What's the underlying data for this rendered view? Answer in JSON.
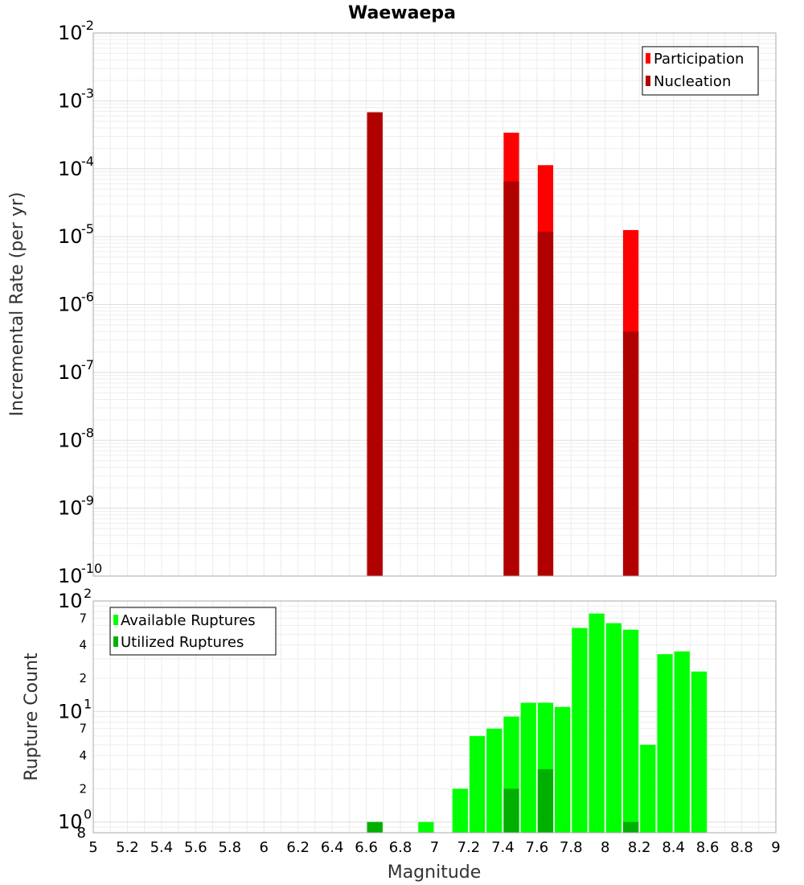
{
  "chart_data": [
    {
      "type": "bar",
      "title": "Waewaepa",
      "xlabel": "",
      "ylabel": "Incremental Rate (per yr)",
      "yscale": "log",
      "ylim": [
        1e-10,
        0.01
      ],
      "xlim": [
        5,
        9
      ],
      "bar_width": 0.1,
      "ytick_exponents": [
        "-10",
        "-9",
        "-8",
        "-7",
        "-6",
        "-5",
        "-4",
        "-3",
        "-2"
      ],
      "series": [
        {
          "name": "Participation",
          "color": "#ff0000",
          "x": [
            6.65,
            7.45,
            7.65,
            8.15
          ],
          "values": [
            0.00068,
            0.00034,
            0.000113,
            1.25e-05
          ]
        },
        {
          "name": "Nucleation",
          "color": "#b00000",
          "x": [
            6.65,
            7.45,
            7.65,
            8.15
          ],
          "values": [
            0.00068,
            6.5e-05,
            1.18e-05,
            4e-07
          ]
        }
      ],
      "legend": [
        "Participation",
        "Nucleation"
      ],
      "legend_position": "top-right"
    },
    {
      "type": "bar",
      "title": "",
      "xlabel": "Magnitude",
      "ylabel": "Rupture Count",
      "yscale": "log",
      "ylim": [
        0.8,
        100
      ],
      "xlim": [
        5,
        9
      ],
      "bar_width": 0.1,
      "xticks": [
        "5",
        "5.2",
        "5.4",
        "5.6",
        "5.8",
        "6",
        "6.2",
        "6.4",
        "6.6",
        "6.8",
        "7",
        "7.2",
        "7.4",
        "7.6",
        "7.8",
        "8",
        "8.2",
        "8.4",
        "8.6",
        "8.8",
        "9"
      ],
      "ytick_exponents": [
        "0",
        "1",
        "2"
      ],
      "y_minor_labels": [
        "2",
        "4",
        "7",
        "2",
        "4",
        "7"
      ],
      "y_low_label": "8",
      "series": [
        {
          "name": "Available Ruptures",
          "color": "#00ff00",
          "x": [
            6.65,
            6.95,
            7.15,
            7.25,
            7.35,
            7.45,
            7.55,
            7.65,
            7.75,
            7.85,
            7.95,
            8.05,
            8.15,
            8.25,
            8.35,
            8.45,
            8.55
          ],
          "values": [
            1,
            1,
            2,
            6,
            7,
            9,
            12,
            12,
            11,
            57,
            77,
            63,
            55,
            5,
            33,
            35,
            23
          ]
        },
        {
          "name": "Utilized Ruptures",
          "color": "#00b000",
          "x": [
            6.65,
            7.45,
            7.65,
            8.15
          ],
          "values": [
            1,
            2,
            3,
            1
          ]
        }
      ],
      "legend": [
        "Available Ruptures",
        "Utilized Ruptures"
      ],
      "legend_position": "top-left"
    }
  ]
}
